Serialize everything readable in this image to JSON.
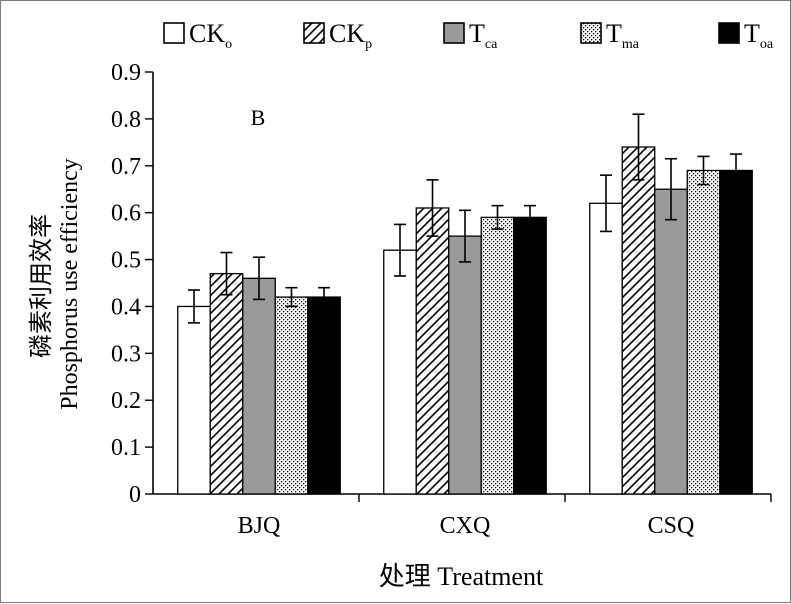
{
  "chart_data": {
    "type": "bar",
    "panel_label": "B",
    "categories": [
      "BJQ",
      "CXQ",
      "CSQ"
    ],
    "series": [
      {
        "name": "CK",
        "sub": "o",
        "pattern": "white",
        "values": [
          0.4,
          0.52,
          0.62
        ],
        "errors": [
          0.035,
          0.055,
          0.06
        ]
      },
      {
        "name": "CK",
        "sub": "p",
        "pattern": "hatch",
        "values": [
          0.47,
          0.61,
          0.74
        ],
        "errors": [
          0.045,
          0.06,
          0.07
        ]
      },
      {
        "name": "T",
        "sub": "ca",
        "pattern": "gray",
        "values": [
          0.46,
          0.55,
          0.65
        ],
        "errors": [
          0.045,
          0.055,
          0.065
        ]
      },
      {
        "name": "T",
        "sub": "ma",
        "pattern": "dots",
        "values": [
          0.42,
          0.59,
          0.69
        ],
        "errors": [
          0.02,
          0.025,
          0.03
        ]
      },
      {
        "name": "T",
        "sub": "oa",
        "pattern": "black",
        "values": [
          0.42,
          0.59,
          0.69
        ],
        "errors": [
          0.02,
          0.025,
          0.035
        ]
      }
    ],
    "ylim": [
      0,
      0.9
    ],
    "yticks": [
      "0",
      "0.1",
      "0.2",
      "0.3",
      "0.4",
      "0.5",
      "0.6",
      "0.7",
      "0.8",
      "0.9"
    ],
    "ylabel_cn": "磷素利用效率",
    "ylabel_en": "Phosphorus use efficiency",
    "xlabel": "处理 Treatment",
    "legend_position": "top",
    "grid": false,
    "colors": {
      "gray": "#9a9a9a",
      "black": "#000000",
      "white": "#ffffff"
    }
  }
}
